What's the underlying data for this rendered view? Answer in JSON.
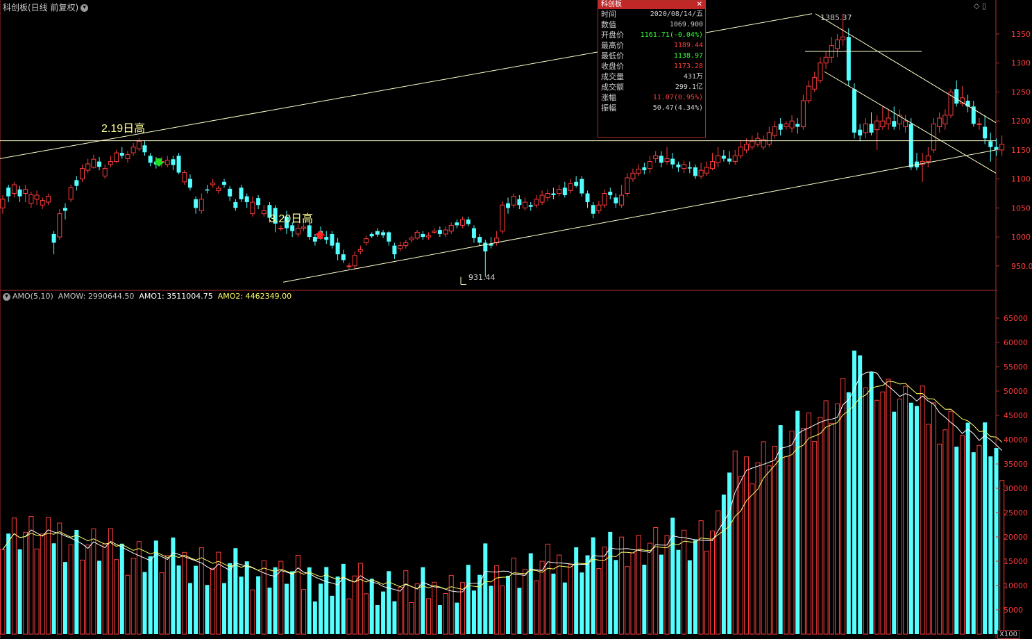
{
  "header": {
    "title": "科创板(日线 前复权)"
  },
  "colors": {
    "up": "#ff3d3d",
    "down": "#54ffff",
    "axis": "#b03030",
    "line_white": "#ffffff",
    "line_yellow": "#ffff66"
  },
  "annotations": {
    "high_219": "2.19日高",
    "high_320": "3.20日高",
    "peak_label": "1385.37",
    "low_label": "931.44"
  },
  "tooltip": {
    "title": "科创板",
    "rows": [
      {
        "k": "时间",
        "v": "2020/08/14/五",
        "c": "#d0d0d0"
      },
      {
        "k": "数值",
        "v": "1069.900",
        "c": "#d0d0d0"
      },
      {
        "k": "开盘价",
        "v": "1161.71(-0.04%)",
        "c": "#33ff33"
      },
      {
        "k": "最高价",
        "v": "1189.44",
        "c": "#ff3d3d"
      },
      {
        "k": "最低价",
        "v": "1138.97",
        "c": "#33ff33"
      },
      {
        "k": "收盘价",
        "v": "1173.28",
        "c": "#ff3d3d"
      },
      {
        "k": "成交量",
        "v": "431万",
        "c": "#d0d0d0"
      },
      {
        "k": "成交额",
        "v": "299.1亿",
        "c": "#d0d0d0"
      },
      {
        "k": "涨幅",
        "v": "11.07(0.95%)",
        "c": "#ff3d3d"
      },
      {
        "k": "振幅",
        "v": "50.47(4.34%)",
        "c": "#d0d0d0"
      }
    ]
  },
  "amo_header": {
    "name": "AMO(5,10)",
    "amow": "AMOW: 2990644.50",
    "amo1": "AMO1: 3511004.75",
    "amo2": "AMO2: 4462349.00"
  },
  "x_unit": "X100",
  "chart_data": [
    {
      "type": "candlestick",
      "y_ticks": [
        950.0,
        1000,
        1050,
        1100,
        1150,
        1200,
        1250,
        1300,
        1350
      ],
      "y_tick_labels": [
        "950.0",
        "1000",
        "1050",
        "1100",
        "1150",
        "1200",
        "1250",
        "1300",
        "1350"
      ],
      "candles": [
        [
          1050,
          1065,
          1040,
          1072
        ],
        [
          1085,
          1070,
          1060,
          1090
        ],
        [
          1075,
          1090,
          1068,
          1095
        ],
        [
          1082,
          1070,
          1060,
          1088
        ],
        [
          1075,
          1082,
          1060,
          1090
        ],
        [
          1058,
          1073,
          1050,
          1078
        ],
        [
          1065,
          1072,
          1055,
          1080
        ],
        [
          1055,
          1063,
          1048,
          1068
        ],
        [
          1060,
          1070,
          1055,
          1075
        ],
        [
          1005,
          990,
          970,
          1010
        ],
        [
          1000,
          1040,
          995,
          1048
        ],
        [
          1050,
          1045,
          1030,
          1058
        ],
        [
          1065,
          1085,
          1060,
          1090
        ],
        [
          1098,
          1088,
          1080,
          1105
        ],
        [
          1100,
          1118,
          1095,
          1125
        ],
        [
          1115,
          1126,
          1110,
          1135
        ],
        [
          1120,
          1134,
          1118,
          1142
        ],
        [
          1130,
          1121,
          1115,
          1138
        ],
        [
          1105,
          1118,
          1100,
          1125
        ],
        [
          1125,
          1130,
          1120,
          1140
        ],
        [
          1130,
          1145,
          1128,
          1150
        ],
        [
          1145,
          1140,
          1135,
          1155
        ],
        [
          1135,
          1142,
          1128,
          1148
        ],
        [
          1145,
          1155,
          1140,
          1162
        ],
        [
          1152,
          1165,
          1148,
          1170
        ],
        [
          1158,
          1146,
          1140,
          1166
        ],
        [
          1140,
          1128,
          1122,
          1145
        ],
        [
          1130,
          1125,
          1118,
          1138
        ],
        [
          1128,
          1130,
          1120,
          1138
        ],
        [
          1125,
          1132,
          1120,
          1140
        ],
        [
          1134,
          1124,
          1115,
          1140
        ],
        [
          1140,
          1111,
          1108,
          1145
        ],
        [
          1095,
          1111,
          1090,
          1115
        ],
        [
          1100,
          1085,
          1080,
          1108
        ],
        [
          1065,
          1050,
          1040,
          1070
        ],
        [
          1045,
          1065,
          1040,
          1075
        ],
        [
          1082,
          1080,
          1075,
          1090
        ],
        [
          1090,
          1093,
          1085,
          1100
        ],
        [
          1080,
          1084,
          1075,
          1088
        ],
        [
          1095,
          1090,
          1085,
          1100
        ],
        [
          1083,
          1070,
          1062,
          1088
        ],
        [
          1060,
          1050,
          1045,
          1065
        ],
        [
          1085,
          1065,
          1060,
          1090
        ],
        [
          1070,
          1060,
          1050,
          1075
        ],
        [
          1040,
          1060,
          1035,
          1070
        ],
        [
          1067,
          1055,
          1048,
          1072
        ],
        [
          1040,
          1045,
          1035,
          1055
        ],
        [
          1055,
          1033,
          1025,
          1060
        ],
        [
          1050,
          1023,
          1008,
          1055
        ],
        [
          1015,
          1015,
          1010,
          1020
        ],
        [
          1035,
          1015,
          1005,
          1045
        ],
        [
          1020,
          1010,
          1000,
          1025
        ],
        [
          1005,
          1015,
          1000,
          1022
        ],
        [
          1015,
          1017,
          1010,
          1022
        ],
        [
          1020,
          1000,
          995,
          1025
        ],
        [
          1000,
          992,
          985,
          1005
        ],
        [
          1010,
          1003,
          995,
          1018
        ],
        [
          1000,
          995,
          988,
          1010
        ],
        [
          1005,
          985,
          980,
          1010
        ],
        [
          990,
          970,
          960,
          998
        ],
        [
          970,
          960,
          955,
          978
        ],
        [
          950,
          950,
          945,
          955
        ],
        [
          950,
          968,
          945,
          975
        ],
        [
          975,
          978,
          970,
          985
        ],
        [
          990,
          997,
          985,
          1002
        ],
        [
          1005,
          1001,
          998,
          1008
        ],
        [
          1010,
          1004,
          1000,
          1015
        ],
        [
          1008,
          1003,
          998,
          1012
        ],
        [
          1008,
          992,
          985,
          1010
        ],
        [
          985,
          970,
          962,
          990
        ],
        [
          980,
          985,
          975,
          992
        ],
        [
          985,
          990,
          980,
          995
        ],
        [
          995,
          998,
          990,
          1002
        ],
        [
          998,
          1008,
          995,
          1012
        ],
        [
          1005,
          1000,
          995,
          1010
        ],
        [
          1000,
          1002,
          995,
          1008
        ],
        [
          1008,
          1010,
          1005,
          1015
        ],
        [
          1012,
          1005,
          1000,
          1018
        ],
        [
          1005,
          1012,
          1000,
          1018
        ],
        [
          1010,
          1020,
          1005,
          1025
        ],
        [
          1025,
          1020,
          1015,
          1030
        ],
        [
          1020,
          1030,
          1015,
          1035
        ],
        [
          1030,
          1022,
          1018,
          1035
        ],
        [
          1015,
          998,
          990,
          1020
        ],
        [
          1000,
          990,
          985,
          1005
        ],
        [
          990,
          975,
          931,
          995
        ],
        [
          988,
          985,
          980,
          1000
        ],
        [
          990,
          998,
          985,
          1010
        ],
        [
          1010,
          1055,
          1005,
          1062
        ],
        [
          1058,
          1050,
          1040,
          1068
        ],
        [
          1055,
          1070,
          1050,
          1075
        ],
        [
          1065,
          1055,
          1048,
          1072
        ],
        [
          1050,
          1060,
          1045,
          1068
        ],
        [
          1055,
          1052,
          1045,
          1060
        ],
        [
          1055,
          1065,
          1050,
          1072
        ],
        [
          1060,
          1072,
          1055,
          1080
        ],
        [
          1068,
          1075,
          1062,
          1082
        ],
        [
          1075,
          1072,
          1065,
          1085
        ],
        [
          1075,
          1082,
          1070,
          1090
        ],
        [
          1085,
          1072,
          1068,
          1095
        ],
        [
          1080,
          1092,
          1075,
          1100
        ],
        [
          1095,
          1088,
          1085,
          1105
        ],
        [
          1100,
          1075,
          1070,
          1105
        ],
        [
          1075,
          1060,
          1050,
          1080
        ],
        [
          1055,
          1040,
          1032,
          1060
        ],
        [
          1045,
          1055,
          1040,
          1062
        ],
        [
          1055,
          1075,
          1050,
          1082
        ],
        [
          1078,
          1072,
          1065,
          1085
        ],
        [
          1068,
          1058,
          1050,
          1075
        ],
        [
          1055,
          1072,
          1050,
          1090
        ],
        [
          1075,
          1102,
          1070,
          1110
        ],
        [
          1100,
          1110,
          1095,
          1118
        ],
        [
          1110,
          1117,
          1105,
          1125
        ],
        [
          1120,
          1115,
          1108,
          1128
        ],
        [
          1118,
          1130,
          1110,
          1140
        ],
        [
          1135,
          1140,
          1128,
          1148
        ],
        [
          1140,
          1128,
          1120,
          1148
        ],
        [
          1130,
          1135,
          1125,
          1155
        ],
        [
          1135,
          1125,
          1118,
          1145
        ],
        [
          1125,
          1120,
          1112,
          1130
        ],
        [
          1118,
          1125,
          1110,
          1132
        ],
        [
          1120,
          1118,
          1110,
          1130
        ],
        [
          1120,
          1105,
          1100,
          1125
        ],
        [
          1105,
          1115,
          1100,
          1128
        ],
        [
          1110,
          1120,
          1105,
          1130
        ],
        [
          1118,
          1130,
          1115,
          1145
        ],
        [
          1128,
          1140,
          1120,
          1155
        ],
        [
          1140,
          1135,
          1130,
          1150
        ],
        [
          1135,
          1130,
          1125,
          1148
        ],
        [
          1130,
          1140,
          1125,
          1150
        ],
        [
          1140,
          1155,
          1135,
          1165
        ],
        [
          1150,
          1160,
          1145,
          1170
        ],
        [
          1155,
          1165,
          1150,
          1175
        ],
        [
          1160,
          1170,
          1155,
          1180
        ],
        [
          1155,
          1168,
          1150,
          1175
        ],
        [
          1160,
          1180,
          1155,
          1190
        ],
        [
          1175,
          1190,
          1170,
          1200
        ],
        [
          1195,
          1185,
          1175,
          1205
        ],
        [
          1190,
          1195,
          1185,
          1200
        ],
        [
          1188,
          1200,
          1180,
          1210
        ],
        [
          1195,
          1190,
          1178,
          1205
        ],
        [
          1190,
          1235,
          1185,
          1245
        ],
        [
          1235,
          1260,
          1230,
          1270
        ],
        [
          1255,
          1275,
          1250,
          1285
        ],
        [
          1270,
          1300,
          1265,
          1310
        ],
        [
          1300,
          1310,
          1290,
          1320
        ],
        [
          1310,
          1330,
          1300,
          1345
        ],
        [
          1325,
          1340,
          1310,
          1350
        ],
        [
          1340,
          1345,
          1330,
          1385
        ],
        [
          1345,
          1270,
          1260,
          1360
        ],
        [
          1255,
          1180,
          1170,
          1265
        ],
        [
          1185,
          1175,
          1165,
          1195
        ],
        [
          1180,
          1195,
          1170,
          1205
        ],
        [
          1195,
          1180,
          1175,
          1215
        ],
        [
          1185,
          1200,
          1150,
          1210
        ],
        [
          1190,
          1200,
          1185,
          1225
        ],
        [
          1195,
          1205,
          1185,
          1220
        ],
        [
          1200,
          1190,
          1185,
          1225
        ],
        [
          1195,
          1210,
          1185,
          1220
        ],
        [
          1190,
          1200,
          1180,
          1210
        ],
        [
          1195,
          1120,
          1115,
          1205
        ],
        [
          1130,
          1120,
          1115,
          1145
        ],
        [
          1125,
          1130,
          1095,
          1145
        ],
        [
          1130,
          1140,
          1120,
          1155
        ],
        [
          1150,
          1195,
          1145,
          1205
        ],
        [
          1190,
          1205,
          1180,
          1215
        ],
        [
          1195,
          1210,
          1185,
          1220
        ],
        [
          1210,
          1250,
          1205,
          1255
        ],
        [
          1255,
          1230,
          1225,
          1270
        ],
        [
          1230,
          1240,
          1225,
          1260
        ],
        [
          1235,
          1225,
          1215,
          1245
        ],
        [
          1225,
          1195,
          1190,
          1235
        ],
        [
          1195,
          1195,
          1185,
          1205
        ],
        [
          1190,
          1170,
          1160,
          1210
        ],
        [
          1165,
          1155,
          1130,
          1180
        ],
        [
          1155,
          1150,
          1140,
          1170
        ],
        [
          1150,
          1160,
          1140,
          1175
        ]
      ],
      "annotations": {
        "high_price": 1385.37,
        "low_price": 931.44
      }
    },
    {
      "type": "bar",
      "name": "AMO",
      "y_ticks": [
        5000,
        10000,
        15000,
        20000,
        25000,
        30000,
        35000,
        40000,
        45000,
        50000,
        55000,
        60000,
        65000
      ],
      "y_tick_labels": [
        "5000",
        "10000",
        "15000",
        "20000",
        "25000",
        "30000",
        "35000",
        "40000",
        "45000",
        "50000",
        "55000",
        "60000",
        "65000"
      ],
      "unit": "X100",
      "series": [
        {
          "name": "AMO1"
        },
        {
          "name": "AMO2"
        }
      ]
    }
  ]
}
